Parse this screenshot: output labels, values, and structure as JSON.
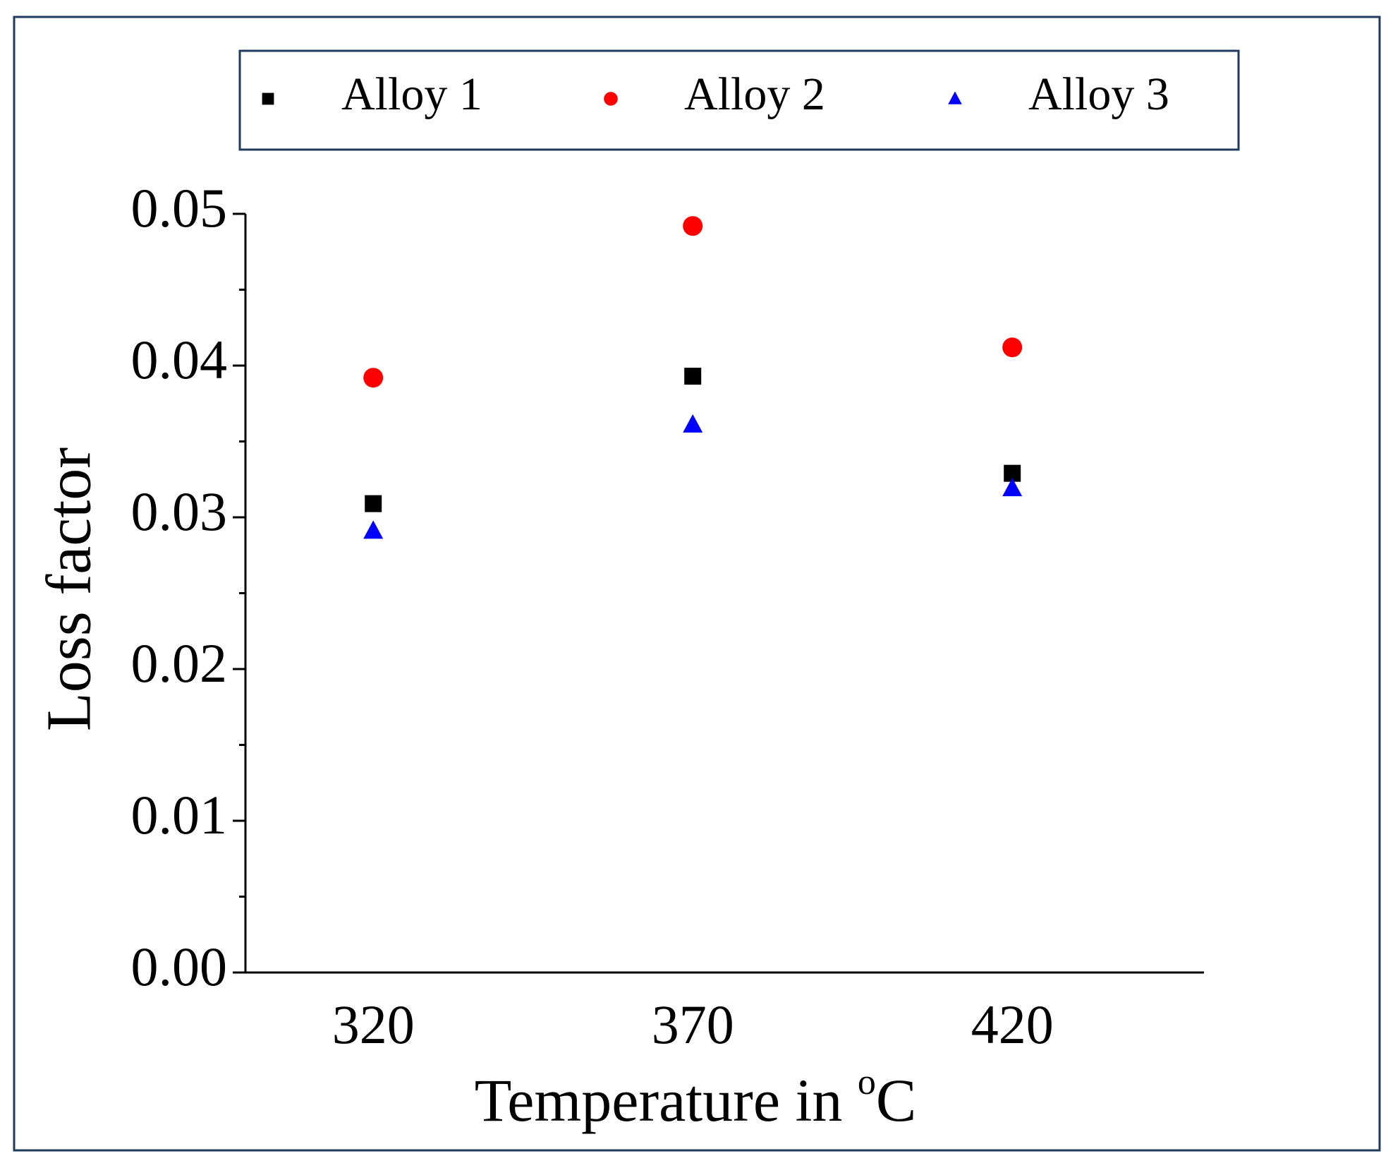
{
  "chart_data": {
    "type": "scatter",
    "x_label": {
      "text": "Temperature in ",
      "superscript": "o",
      "unit": "C"
    },
    "y_label": "Loss factor",
    "x": [
      320,
      370,
      420
    ],
    "series": [
      {
        "name": "Alloy 1",
        "color": "#000000",
        "marker": "square",
        "values": [
          0.0309,
          0.0393,
          0.0329
        ]
      },
      {
        "name": "Alloy 2",
        "color": "#ff0000",
        "marker": "circle",
        "values": [
          0.0392,
          0.0492,
          0.0412
        ]
      },
      {
        "name": "Alloy 3",
        "color": "#0000ff",
        "marker": "triangle",
        "values": [
          0.0291,
          0.0361,
          0.0319
        ]
      }
    ],
    "xlim": [
      300,
      450
    ],
    "xticks": [
      320,
      370,
      420
    ],
    "ylim": [
      0,
      0.05
    ],
    "yticks": [
      {
        "value": 0,
        "label": "0.00"
      },
      0.01,
      0.02,
      0.03,
      0.04,
      0.05
    ],
    "minor_yticks": [
      0.005,
      0.015,
      0.025,
      0.035,
      0.045
    ],
    "legend": "top",
    "grid": false
  }
}
